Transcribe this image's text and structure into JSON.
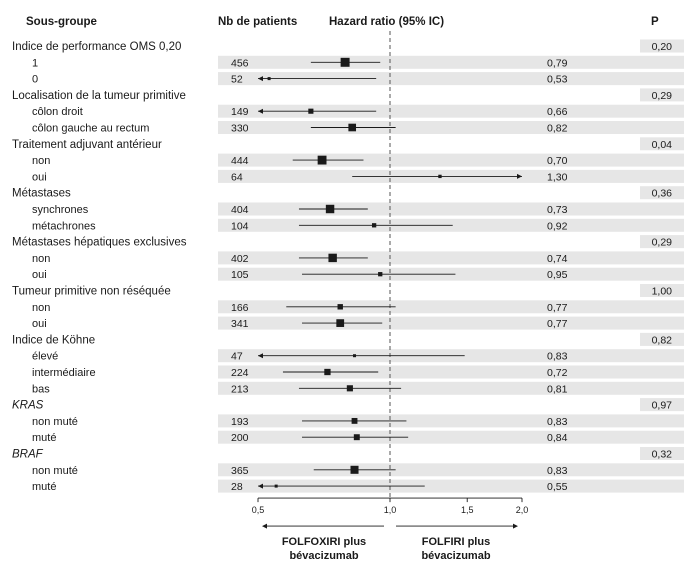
{
  "chart_data": {
    "type": "forest",
    "headers": {
      "subgroup": "Sous-groupe",
      "n": "Nb de patients",
      "hr": "Hazard ratio (95% IC)",
      "p": "P"
    },
    "xscale": "log",
    "xlim": [
      0.5,
      2.0
    ],
    "xticks": [
      0.5,
      1.0,
      1.5,
      2.0
    ],
    "xtick_labels": [
      "0,5",
      "1,0",
      "1,5",
      "2,0"
    ],
    "reference_line": 1.0,
    "direction_labels": {
      "left": [
        "FOLFOXIRI plus",
        "bévacizumab"
      ],
      "right": [
        "FOLFIRI plus",
        "bévacizumab"
      ]
    },
    "groups": [
      {
        "label": "Indice de performance OMS 0,20",
        "italic": false,
        "p": "0,20",
        "rows": [
          {
            "label": "1",
            "n": "456",
            "hr": 0.79,
            "hr_label": "0,79",
            "lo": 0.66,
            "hi": 0.95,
            "arrow_lo": false,
            "arrow_hi": false
          },
          {
            "label": "0",
            "n": "52",
            "hr": 0.53,
            "hr_label": "0,53",
            "lo": 0.5,
            "hi": 0.93,
            "arrow_lo": true,
            "arrow_hi": false
          }
        ]
      },
      {
        "label": "Localisation de la tumeur primitive",
        "italic": false,
        "p": "0,29",
        "rows": [
          {
            "label": "côlon droit",
            "n": "149",
            "hr": 0.66,
            "hr_label": "0,66",
            "lo": 0.5,
            "hi": 0.93,
            "arrow_lo": true,
            "arrow_hi": false
          },
          {
            "label": "côlon gauche au rectum",
            "n": "330",
            "hr": 0.82,
            "hr_label": "0,82",
            "lo": 0.66,
            "hi": 1.03,
            "arrow_lo": false,
            "arrow_hi": false
          }
        ]
      },
      {
        "label": "Traitement adjuvant antérieur",
        "italic": false,
        "p": "0,04",
        "rows": [
          {
            "label": "non",
            "n": "444",
            "hr": 0.7,
            "hr_label": "0,70",
            "lo": 0.6,
            "hi": 0.87,
            "arrow_lo": false,
            "arrow_hi": false
          },
          {
            "label": "oui",
            "n": "64",
            "hr": 1.3,
            "hr_label": "1,30",
            "lo": 0.82,
            "hi": 2.0,
            "arrow_lo": false,
            "arrow_hi": true
          }
        ]
      },
      {
        "label": "Métastases",
        "italic": false,
        "p": "0,36",
        "rows": [
          {
            "label": "synchrones",
            "n": "404",
            "hr": 0.73,
            "hr_label": "0,73",
            "lo": 0.62,
            "hi": 0.89,
            "arrow_lo": false,
            "arrow_hi": false
          },
          {
            "label": "métachrones",
            "n": "104",
            "hr": 0.92,
            "hr_label": "0,92",
            "lo": 0.62,
            "hi": 1.39,
            "arrow_lo": false,
            "arrow_hi": false
          }
        ]
      },
      {
        "label": "Métastases hépatiques exclusives",
        "italic": false,
        "p": "0,29",
        "rows": [
          {
            "label": "non",
            "n": "402",
            "hr": 0.74,
            "hr_label": "0,74",
            "lo": 0.62,
            "hi": 0.89,
            "arrow_lo": false,
            "arrow_hi": false
          },
          {
            "label": "oui",
            "n": "105",
            "hr": 0.95,
            "hr_label": "0,95",
            "lo": 0.63,
            "hi": 1.41,
            "arrow_lo": false,
            "arrow_hi": false
          }
        ]
      },
      {
        "label": "Tumeur primitive non réséquée",
        "italic": false,
        "p": "1,00",
        "rows": [
          {
            "label": "non",
            "n": "166",
            "hr": 0.77,
            "hr_label": "0,77",
            "lo": 0.58,
            "hi": 1.03,
            "arrow_lo": false,
            "arrow_hi": false
          },
          {
            "label": "oui",
            "n": "341",
            "hr": 0.77,
            "hr_label": "0,77",
            "lo": 0.63,
            "hi": 0.96,
            "arrow_lo": false,
            "arrow_hi": false
          }
        ]
      },
      {
        "label": "Indice de Köhne",
        "italic": false,
        "p": "0,82",
        "rows": [
          {
            "label": "élevé",
            "n": "47",
            "hr": 0.83,
            "hr_label": "0,83",
            "lo": 0.5,
            "hi": 1.48,
            "arrow_lo": true,
            "arrow_hi": false
          },
          {
            "label": "intermédiaire",
            "n": "224",
            "hr": 0.72,
            "hr_label": "0,72",
            "lo": 0.57,
            "hi": 0.94,
            "arrow_lo": false,
            "arrow_hi": false
          },
          {
            "label": "bas",
            "n": "213",
            "hr": 0.81,
            "hr_label": "0,81",
            "lo": 0.62,
            "hi": 1.06,
            "arrow_lo": false,
            "arrow_hi": false
          }
        ]
      },
      {
        "label": "KRAS",
        "italic": true,
        "p": "0,97",
        "rows": [
          {
            "label": "non muté",
            "n": "193",
            "hr": 0.83,
            "hr_label": "0,83",
            "lo": 0.63,
            "hi": 1.09,
            "arrow_lo": false,
            "arrow_hi": false
          },
          {
            "label": "muté",
            "n": "200",
            "hr": 0.84,
            "hr_label": "0,84",
            "lo": 0.63,
            "hi": 1.1,
            "arrow_lo": false,
            "arrow_hi": false
          }
        ]
      },
      {
        "label": "BRAF",
        "italic": true,
        "p": "0,32",
        "rows": [
          {
            "label": "non muté",
            "n": "365",
            "hr": 0.83,
            "hr_label": "0,83",
            "lo": 0.67,
            "hi": 1.03,
            "arrow_lo": false,
            "arrow_hi": false
          },
          {
            "label": "muté",
            "n": "28",
            "hr": 0.55,
            "hr_label": "0,55",
            "lo": 0.5,
            "hi": 1.2,
            "arrow_lo": true,
            "arrow_hi": false
          }
        ]
      }
    ]
  }
}
